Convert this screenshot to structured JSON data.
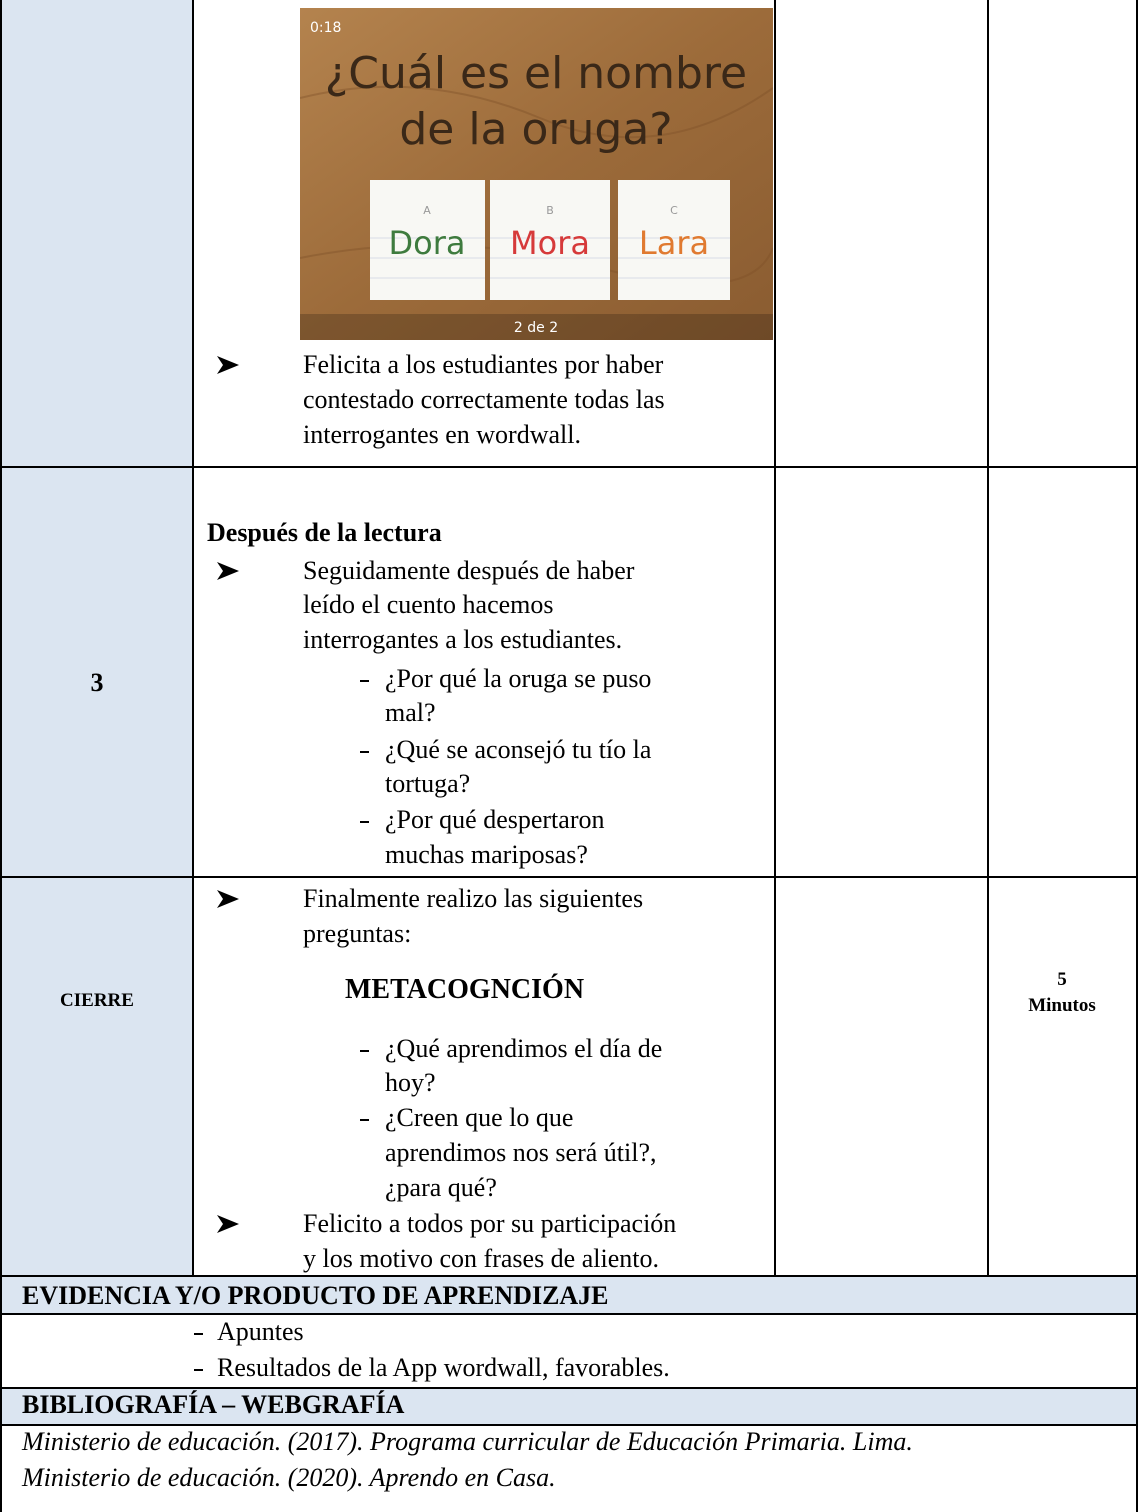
{
  "image": {
    "timer": "0:18",
    "question": [
      "¿Cuál es el nombre",
      "de la oruga?"
    ],
    "options": [
      {
        "letter": "A",
        "text": "Dora"
      },
      {
        "letter": "B",
        "text": "Mora"
      },
      {
        "letter": "C",
        "text": "Lara"
      }
    ],
    "pager": "2 de 2"
  },
  "row1": {
    "bullets": [
      [
        "Felicita a los estudiantes por haber",
        "contestado correctamente todas las",
        "interrogantes en wordwall."
      ]
    ]
  },
  "row2": {
    "number": "3",
    "heading": "Después de la lectura",
    "bullets": [
      [
        "Seguidamente después de haber",
        "leído el cuento hacemos",
        "interrogantes a los estudiantes."
      ]
    ],
    "questions": [
      [
        "¿Por qué la oruga se puso",
        "mal?"
      ],
      [
        "¿Qué se aconsejó tu tío la",
        "tortuga?"
      ],
      [
        "¿Por qué despertaron",
        "muchas mariposas?"
      ]
    ]
  },
  "row3": {
    "label": "CIERRE",
    "intro": [
      "Finalmente realizo las siguientes",
      "preguntas:"
    ],
    "subheading": "METACOGNCIÓN",
    "questions": [
      [
        "¿Qué aprendimos el día de",
        "hoy?"
      ],
      [
        "¿Creen que lo que",
        "aprendimos nos será útil?,",
        "¿para qué?"
      ]
    ],
    "closing": [
      "Felicito a todos por su participación",
      "y los motivo con frases de aliento."
    ],
    "time": [
      "5",
      "Minutos"
    ]
  },
  "evidence": {
    "title": "EVIDENCIA Y/O PRODUCTO DE APRENDIZAJE",
    "items": [
      "Apuntes",
      "Resultados de la App wordwall, favorables."
    ]
  },
  "bibliography": {
    "title": "BIBLIOGRAFÍA – WEBGRAFÍA",
    "entries": [
      "Ministerio de educación. (2017). Programa curricular de Educación Primaria. Lima.",
      "Ministerio de educación. (2020). Aprendo en Casa."
    ]
  }
}
